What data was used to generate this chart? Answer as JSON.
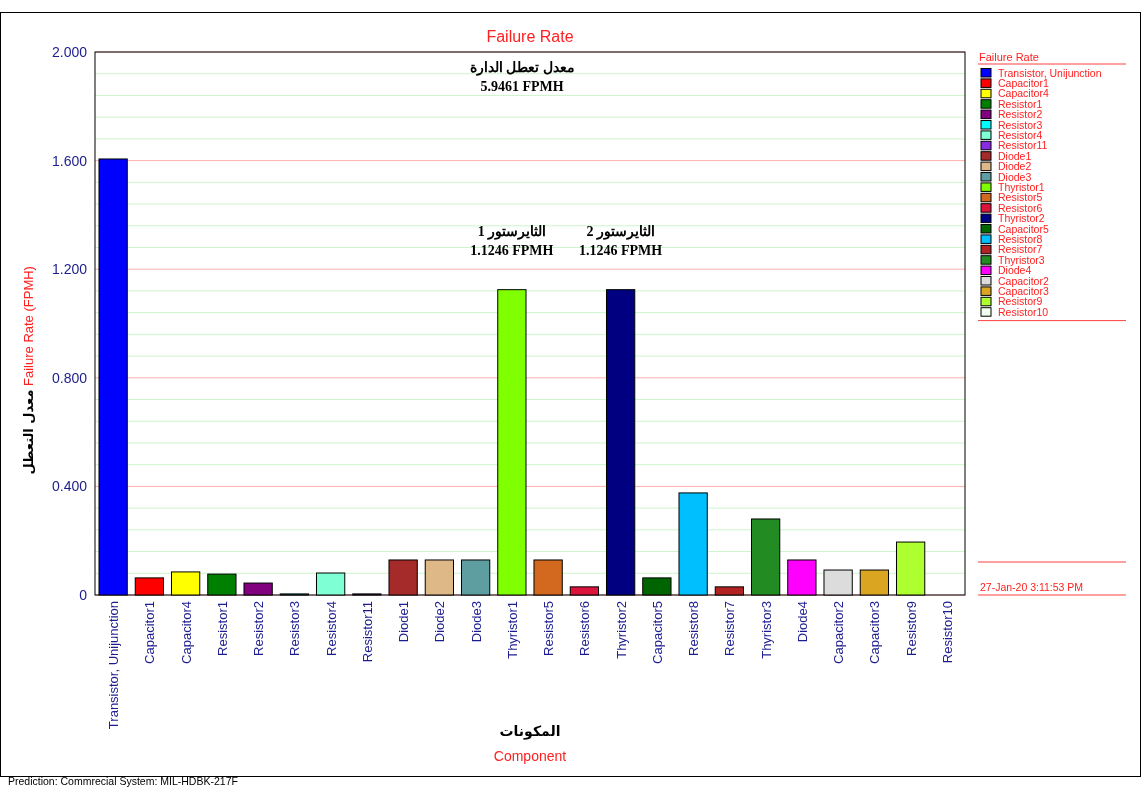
{
  "chart_data": {
    "type": "bar",
    "title": "Failure Rate",
    "xlabel": "المكونات\nComponent",
    "ylabel": "Failure Rate (FPMH)",
    "legend_title": "Failure Rate",
    "categories": [
      "Transistor, Unijunction",
      "Capacitor1",
      "Capacitor4",
      "Resistor1",
      "Resistor2",
      "Resistor3",
      "Resistor4",
      "Resistor11",
      "Diode1",
      "Diode2",
      "Diode3",
      "Thyristor1",
      "Resistor5",
      "Resistor6",
      "Thyristor2",
      "Capacitor5",
      "Resistor8",
      "Resistor7",
      "Thyristor3",
      "Diode4",
      "Capacitor2",
      "Capacitor3",
      "Resistor9",
      "Resistor10"
    ],
    "series": [
      {
        "name": "Transistor, Unijunction",
        "color": "#0000ff",
        "values": [
          1.606,
          null,
          null,
          null,
          null,
          null,
          null,
          null,
          null,
          null,
          null,
          null,
          null,
          null,
          null,
          null,
          null,
          null,
          null,
          null,
          null,
          null,
          null,
          null
        ]
      },
      {
        "name": "Capacitor1",
        "color": "#ff0000",
        "values": [
          null,
          0.063,
          null,
          null,
          null,
          null,
          null,
          null,
          null,
          null,
          null,
          null,
          null,
          null,
          null,
          null,
          null,
          null,
          null,
          null,
          null,
          null,
          null,
          null
        ]
      },
      {
        "name": "Capacitor4",
        "color": "#ffff00",
        "values": [
          null,
          null,
          0.085,
          null,
          null,
          null,
          null,
          null,
          null,
          null,
          null,
          null,
          null,
          null,
          null,
          null,
          null,
          null,
          null,
          null,
          null,
          null,
          null,
          null
        ]
      },
      {
        "name": "Resistor1",
        "color": "#008000",
        "values": [
          null,
          null,
          null,
          0.077,
          null,
          null,
          null,
          null,
          null,
          null,
          null,
          null,
          null,
          null,
          null,
          null,
          null,
          null,
          null,
          null,
          null,
          null,
          null,
          null
        ]
      },
      {
        "name": "Resistor2",
        "color": "#800080",
        "values": [
          null,
          null,
          null,
          null,
          0.044,
          null,
          null,
          null,
          null,
          null,
          null,
          null,
          null,
          null,
          null,
          null,
          null,
          null,
          null,
          null,
          null,
          null,
          null,
          null
        ]
      },
      {
        "name": "Resistor3",
        "color": "#00ffff",
        "values": [
          null,
          null,
          null,
          null,
          null,
          0.004,
          null,
          null,
          null,
          null,
          null,
          null,
          null,
          null,
          null,
          null,
          null,
          null,
          null,
          null,
          null,
          null,
          null,
          null
        ]
      },
      {
        "name": "Resistor4",
        "color": "#7fffd4",
        "values": [
          null,
          null,
          null,
          null,
          null,
          null,
          0.081,
          null,
          null,
          null,
          null,
          null,
          null,
          null,
          null,
          null,
          null,
          null,
          null,
          null,
          null,
          null,
          null,
          null
        ]
      },
      {
        "name": "Resistor11",
        "color": "#8a2be2",
        "values": [
          null,
          null,
          null,
          null,
          null,
          null,
          null,
          0.004,
          null,
          null,
          null,
          null,
          null,
          null,
          null,
          null,
          null,
          null,
          null,
          null,
          null,
          null,
          null,
          null
        ]
      },
      {
        "name": "Diode1",
        "color": "#a52a2a",
        "values": [
          null,
          null,
          null,
          null,
          null,
          null,
          null,
          null,
          0.129,
          null,
          null,
          null,
          null,
          null,
          null,
          null,
          null,
          null,
          null,
          null,
          null,
          null,
          null,
          null
        ]
      },
      {
        "name": "Diode2",
        "color": "#deb887",
        "values": [
          null,
          null,
          null,
          null,
          null,
          null,
          null,
          null,
          null,
          0.129,
          null,
          null,
          null,
          null,
          null,
          null,
          null,
          null,
          null,
          null,
          null,
          null,
          null,
          null
        ]
      },
      {
        "name": "Diode3",
        "color": "#5f9ea0",
        "values": [
          null,
          null,
          null,
          null,
          null,
          null,
          null,
          null,
          null,
          null,
          0.129,
          null,
          null,
          null,
          null,
          null,
          null,
          null,
          null,
          null,
          null,
          null,
          null,
          null
        ]
      },
      {
        "name": "Thyristor1",
        "color": "#7fff00",
        "values": [
          null,
          null,
          null,
          null,
          null,
          null,
          null,
          null,
          null,
          null,
          null,
          1.1246,
          null,
          null,
          null,
          null,
          null,
          null,
          null,
          null,
          null,
          null,
          null,
          null
        ]
      },
      {
        "name": "Resistor5",
        "color": "#d2691e",
        "values": [
          null,
          null,
          null,
          null,
          null,
          null,
          null,
          null,
          null,
          null,
          null,
          null,
          0.129,
          null,
          null,
          null,
          null,
          null,
          null,
          null,
          null,
          null,
          null,
          null
        ]
      },
      {
        "name": "Resistor6",
        "color": "#dc143c",
        "values": [
          null,
          null,
          null,
          null,
          null,
          null,
          null,
          null,
          null,
          null,
          null,
          null,
          null,
          0.03,
          null,
          null,
          null,
          null,
          null,
          null,
          null,
          null,
          null,
          null
        ]
      },
      {
        "name": "Thyristor2",
        "color": "#000080",
        "values": [
          null,
          null,
          null,
          null,
          null,
          null,
          null,
          null,
          null,
          null,
          null,
          null,
          null,
          null,
          1.1246,
          null,
          null,
          null,
          null,
          null,
          null,
          null,
          null,
          null
        ]
      },
      {
        "name": "Capacitor5",
        "color": "#006400",
        "values": [
          null,
          null,
          null,
          null,
          null,
          null,
          null,
          null,
          null,
          null,
          null,
          null,
          null,
          null,
          null,
          0.063,
          null,
          null,
          null,
          null,
          null,
          null,
          null,
          null
        ]
      },
      {
        "name": "Resistor8",
        "color": "#00bfff",
        "values": [
          null,
          null,
          null,
          null,
          null,
          null,
          null,
          null,
          null,
          null,
          null,
          null,
          null,
          null,
          null,
          null,
          0.376,
          null,
          null,
          null,
          null,
          null,
          null,
          null
        ]
      },
      {
        "name": "Resistor7",
        "color": "#b22222",
        "values": [
          null,
          null,
          null,
          null,
          null,
          null,
          null,
          null,
          null,
          null,
          null,
          null,
          null,
          null,
          null,
          null,
          null,
          0.03,
          null,
          null,
          null,
          null,
          null,
          null
        ]
      },
      {
        "name": "Thyristor3",
        "color": "#228b22",
        "values": [
          null,
          null,
          null,
          null,
          null,
          null,
          null,
          null,
          null,
          null,
          null,
          null,
          null,
          null,
          null,
          null,
          null,
          null,
          0.28,
          null,
          null,
          null,
          null,
          null
        ]
      },
      {
        "name": "Diode4",
        "color": "#ff00ff",
        "values": [
          null,
          null,
          null,
          null,
          null,
          null,
          null,
          null,
          null,
          null,
          null,
          null,
          null,
          null,
          null,
          null,
          null,
          null,
          null,
          0.129,
          null,
          null,
          null,
          null
        ]
      },
      {
        "name": "Capacitor2",
        "color": "#dcdcdc",
        "values": [
          null,
          null,
          null,
          null,
          null,
          null,
          null,
          null,
          null,
          null,
          null,
          null,
          null,
          null,
          null,
          null,
          null,
          null,
          null,
          null,
          0.092,
          null,
          null,
          null
        ]
      },
      {
        "name": "Capacitor3",
        "color": "#daa520",
        "values": [
          null,
          null,
          null,
          null,
          null,
          null,
          null,
          null,
          null,
          null,
          null,
          null,
          null,
          null,
          null,
          null,
          null,
          null,
          null,
          null,
          null,
          0.092,
          null,
          null
        ]
      },
      {
        "name": "Resistor9",
        "color": "#adff2f",
        "values": [
          null,
          null,
          null,
          null,
          null,
          null,
          null,
          null,
          null,
          null,
          null,
          null,
          null,
          null,
          null,
          null,
          null,
          null,
          null,
          null,
          null,
          null,
          0.195,
          null
        ]
      },
      {
        "name": "Resistor10",
        "color": "#f0fff0",
        "values": [
          null,
          null,
          null,
          null,
          null,
          null,
          null,
          null,
          null,
          null,
          null,
          null,
          null,
          null,
          null,
          null,
          null,
          null,
          null,
          null,
          null,
          null,
          null,
          0
        ]
      }
    ],
    "ylim": [
      0,
      2.0
    ],
    "yticks": [
      {
        "value": 0,
        "label": "0"
      },
      {
        "value": 0.08,
        "label": null
      },
      {
        "value": 0.16,
        "label": null
      },
      {
        "value": 0.24,
        "label": null
      },
      {
        "value": 0.32,
        "label": null
      },
      {
        "value": 0.4,
        "label": "0.400"
      },
      {
        "value": 0.48,
        "label": null
      },
      {
        "value": 0.56,
        "label": null
      },
      {
        "value": 0.64,
        "label": null
      },
      {
        "value": 0.72,
        "label": null
      },
      {
        "value": 0.8,
        "label": "0.800"
      },
      {
        "value": 0.88,
        "label": null
      },
      {
        "value": 0.96,
        "label": null
      },
      {
        "value": 1.04,
        "label": null
      },
      {
        "value": 1.12,
        "label": null
      },
      {
        "value": 1.2,
        "label": "1.200"
      },
      {
        "value": 1.28,
        "label": null
      },
      {
        "value": 1.36,
        "label": null
      },
      {
        "value": 1.44,
        "label": null
      },
      {
        "value": 1.52,
        "label": null
      },
      {
        "value": 1.6,
        "label": "1.600"
      },
      {
        "value": 1.68,
        "label": null
      },
      {
        "value": 1.76,
        "label": null
      },
      {
        "value": 1.84,
        "label": null
      },
      {
        "value": 1.92,
        "label": null
      },
      {
        "value": 2.0,
        "label": "2.000"
      }
    ],
    "grid": "y",
    "legend": "right",
    "annotations": [
      "معدل تعطل الدارة\n5.9461 FPMH",
      {
        "text": "الثايرستور 1\n1.1246 FPMH",
        "x": "Thyristor1",
        "y": 1.1246
      },
      {
        "text": "الثايرستور 2\n1.1246 FPMH",
        "x": "Thyristor2",
        "y": 1.1246
      },
      "27-Jan-20 3:11:53 PM",
      "معدل التعطل",
      "Prediction: Commrecial  System: MIL-HDBK-217F"
    ]
  }
}
